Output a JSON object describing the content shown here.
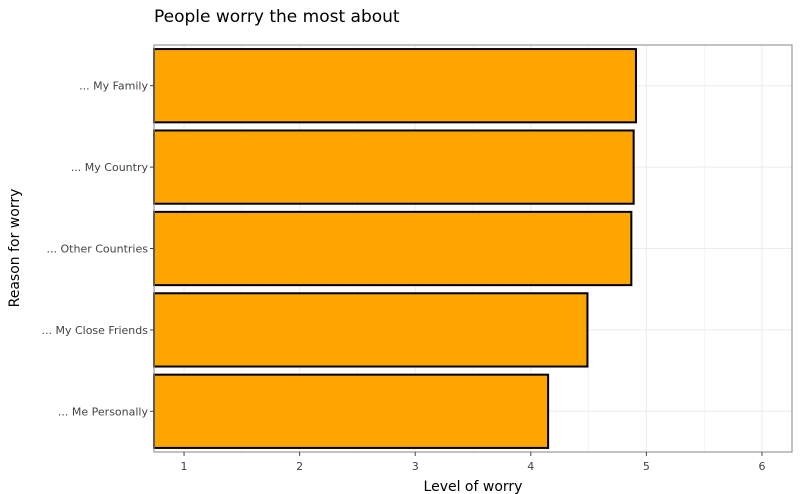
{
  "chart_data": {
    "type": "bar",
    "orientation": "horizontal",
    "title": "People worry the most about",
    "xlabel": "Level of worry",
    "ylabel": "Reason for worry",
    "categories": [
      "... My Family",
      "... My Country",
      "... Other Countries",
      "... My Close Friends",
      "... Me Personally"
    ],
    "values": [
      4.91,
      4.89,
      4.87,
      4.49,
      4.15
    ],
    "xlim": [
      0.74,
      6.26
    ],
    "xticks": [
      1,
      2,
      3,
      4,
      5,
      6
    ],
    "grid": true,
    "colors": {
      "bar_fill": "#FFA500",
      "bar_stroke": "#000000",
      "grid": "#ebebeb",
      "panel_border": "#999999"
    }
  }
}
